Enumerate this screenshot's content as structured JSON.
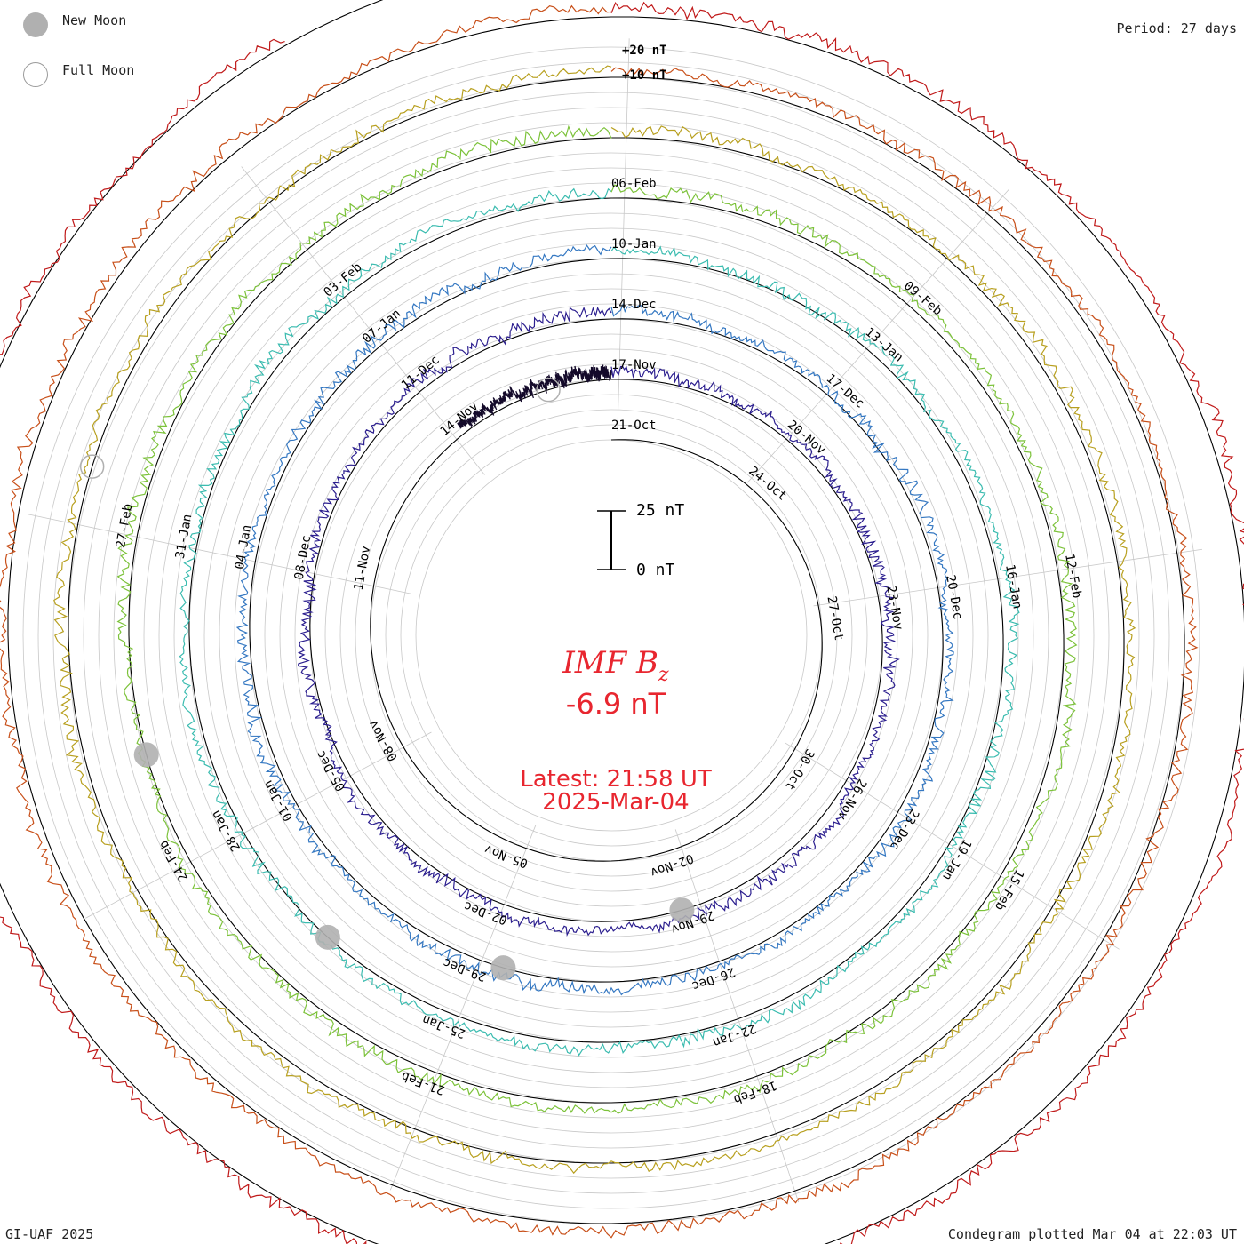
{
  "header": {
    "period": "Period: 27 days",
    "legend": [
      {
        "kind": "new",
        "label": "New Moon"
      },
      {
        "kind": "full",
        "label": "Full Moon"
      }
    ]
  },
  "footer": {
    "credit": "GI-UAF 2025",
    "plotted": "Condegram plotted Mar 04 at 22:03 UT"
  },
  "chart_data": {
    "type": "condegram-spiral",
    "title": "IMF B",
    "title_subscript": "z",
    "latest_value": "-6.9 nT",
    "latest_time": "Latest: 21:58 UT",
    "latest_date": "2025-Mar-04",
    "period_days": 27,
    "scale_bar": {
      "top_label": "25 nT",
      "bottom_label": "0 nT",
      "span_nT": 25
    },
    "ring_scale_labels": [
      "+20 nT",
      "+10 nT"
    ],
    "rings": [
      {
        "cycle": 1,
        "color": "#140a2a",
        "amplitude_nT": 5,
        "start_frac": 0.9,
        "labels": [
          {
            "text": "21-Oct",
            "frac": 0.0
          },
          {
            "text": "24-Oct",
            "frac": 0.111
          },
          {
            "text": "27-Oct",
            "frac": 0.222
          },
          {
            "text": "30-Oct",
            "frac": 0.333
          },
          {
            "text": "02-Nov",
            "frac": 0.444
          },
          {
            "text": "05-Nov",
            "frac": 0.556
          },
          {
            "text": "08-Nov",
            "frac": 0.667
          },
          {
            "text": "11-Nov",
            "frac": 0.778
          },
          {
            "text": "14-Nov",
            "frac": 0.889
          }
        ]
      },
      {
        "cycle": 2,
        "color": "#2c1f8f",
        "amplitude_nT": 5,
        "start_frac": 0.0,
        "labels": [
          {
            "text": "17-Nov",
            "frac": 0.0
          },
          {
            "text": "20-Nov",
            "frac": 0.111
          },
          {
            "text": "23-Nov",
            "frac": 0.222
          },
          {
            "text": "26-Nov",
            "frac": 0.333
          },
          {
            "text": "29-Nov",
            "frac": 0.444
          },
          {
            "text": "02-Dec",
            "frac": 0.556
          },
          {
            "text": "05-Dec",
            "frac": 0.667
          },
          {
            "text": "08-Dec",
            "frac": 0.778
          },
          {
            "text": "11-Dec",
            "frac": 0.889
          }
        ]
      },
      {
        "cycle": 3,
        "color": "#3578c2",
        "amplitude_nT": 5,
        "start_frac": 0.0,
        "labels": [
          {
            "text": "14-Dec",
            "frac": 0.0
          },
          {
            "text": "17-Dec",
            "frac": 0.111
          },
          {
            "text": "20-Dec",
            "frac": 0.222
          },
          {
            "text": "23-Dec",
            "frac": 0.333
          },
          {
            "text": "26-Dec",
            "frac": 0.444
          },
          {
            "text": "29-Dec",
            "frac": 0.556
          },
          {
            "text": "01-Jan",
            "frac": 0.667
          },
          {
            "text": "04-Jan",
            "frac": 0.778
          },
          {
            "text": "07-Jan",
            "frac": 0.889
          }
        ]
      },
      {
        "cycle": 4,
        "color": "#3cbcb0",
        "amplitude_nT": 5,
        "start_frac": 0.0,
        "labels": [
          {
            "text": "10-Jan",
            "frac": 0.0
          },
          {
            "text": "13-Jan",
            "frac": 0.111
          },
          {
            "text": "16-Jan",
            "frac": 0.222
          },
          {
            "text": "19-Jan",
            "frac": 0.333
          },
          {
            "text": "22-Jan",
            "frac": 0.444
          },
          {
            "text": "25-Jan",
            "frac": 0.556
          },
          {
            "text": "28-Jan",
            "frac": 0.667
          },
          {
            "text": "31-Jan",
            "frac": 0.778
          },
          {
            "text": "03-Feb",
            "frac": 0.889
          }
        ]
      },
      {
        "cycle": 5,
        "color": "#7cc23a",
        "amplitude_nT": 5,
        "start_frac": 0.0,
        "labels": [
          {
            "text": "06-Feb",
            "frac": 0.0
          },
          {
            "text": "09-Feb",
            "frac": 0.111
          },
          {
            "text": "12-Feb",
            "frac": 0.222
          },
          {
            "text": "15-Feb",
            "frac": 0.333
          },
          {
            "text": "18-Feb",
            "frac": 0.444
          },
          {
            "text": "21-Feb",
            "frac": 0.556
          },
          {
            "text": "24-Feb",
            "frac": 0.667
          },
          {
            "text": "27-Feb",
            "frac": 0.778
          }
        ]
      },
      {
        "cycle": 6,
        "color": "#b8a020",
        "amplitude_nT": 5,
        "start_frac": 0.0,
        "labels": []
      },
      {
        "cycle": 7,
        "color": "#c8501a",
        "amplitude_nT": 5,
        "start_frac": 0.0,
        "labels": []
      },
      {
        "cycle": 8,
        "color": "#c01a1a",
        "amplitude_nT": 5,
        "start_frac": 0.0,
        "end_frac": 0.92,
        "labels": []
      }
    ],
    "moons": [
      {
        "kind": "full",
        "cycle": 1,
        "frac": 0.96
      },
      {
        "kind": "new",
        "cycle": 2,
        "frac": 0.46
      },
      {
        "kind": "new",
        "cycle": 3,
        "frac": 0.55
      },
      {
        "kind": "new",
        "cycle": 4,
        "frac": 0.62
      },
      {
        "kind": "new",
        "cycle": 5,
        "frac": 0.71
      },
      {
        "kind": "full",
        "cycle": 6,
        "frac": 0.8
      }
    ]
  }
}
